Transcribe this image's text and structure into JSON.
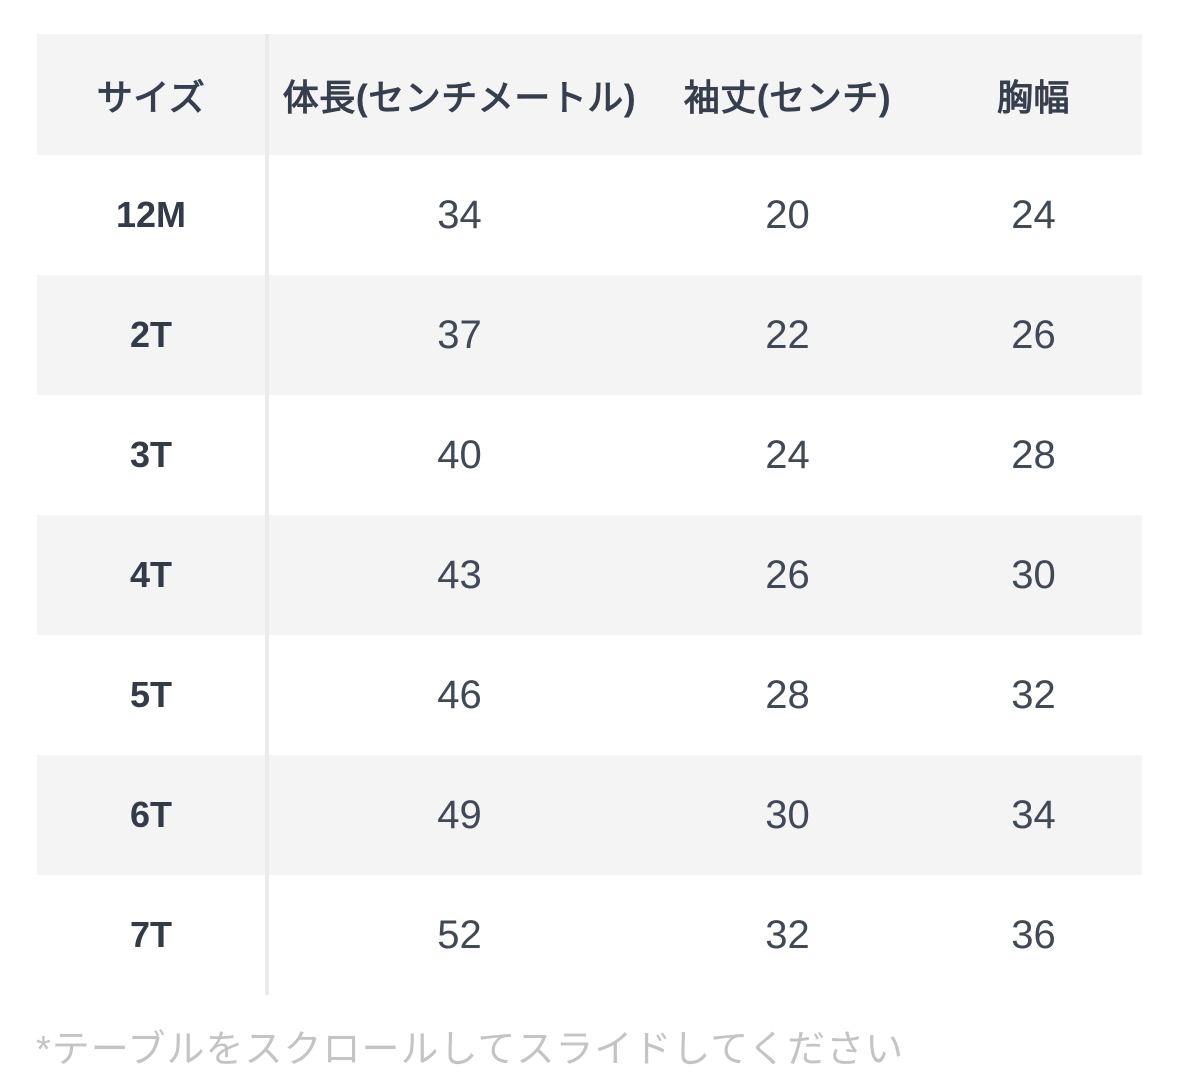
{
  "table": {
    "headers": [
      "サイズ",
      "体長(センチメートル)",
      "袖丈(センチ)",
      "胸幅"
    ],
    "rows": [
      {
        "size": "12M",
        "body_length": "34",
        "sleeve_length": "20",
        "chest_width": "24"
      },
      {
        "size": "2T",
        "body_length": "37",
        "sleeve_length": "22",
        "chest_width": "26"
      },
      {
        "size": "3T",
        "body_length": "40",
        "sleeve_length": "24",
        "chest_width": "28"
      },
      {
        "size": "4T",
        "body_length": "43",
        "sleeve_length": "26",
        "chest_width": "30"
      },
      {
        "size": "5T",
        "body_length": "46",
        "sleeve_length": "28",
        "chest_width": "32"
      },
      {
        "size": "6T",
        "body_length": "49",
        "sleeve_length": "30",
        "chest_width": "34"
      },
      {
        "size": "7T",
        "body_length": "52",
        "sleeve_length": "32",
        "chest_width": "36"
      }
    ],
    "footnote": "*テーブルをスクロールしてスライドしてください"
  },
  "colors": {
    "stripe_background": "#f4f4f5",
    "divider": "#ebebec",
    "header_text": "#373e4d",
    "cell_text": "#414856",
    "footnote_text": "#c3c4c6",
    "page_background": "#ffffff"
  }
}
